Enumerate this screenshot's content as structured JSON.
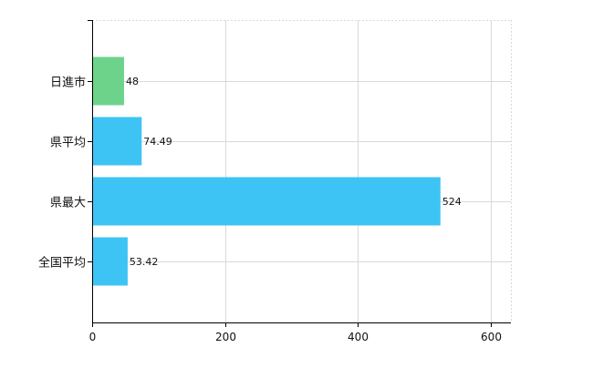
{
  "chart_data": {
    "type": "bar",
    "orientation": "horizontal",
    "categories": [
      "日進市",
      "県平均",
      "県最大",
      "全国平均"
    ],
    "values": [
      48,
      74.49,
      524,
      53.42
    ],
    "value_labels": [
      "48",
      "74.49",
      "524",
      "53.42"
    ],
    "bar_colors": [
      "#6ed38a",
      "#3ec3f5",
      "#3ec3f5",
      "#3ec3f5"
    ],
    "xlim": [
      0,
      630
    ],
    "x_ticks": [
      0,
      200,
      400,
      600
    ],
    "x_tick_labels": [
      "0",
      "200",
      "400",
      "600"
    ],
    "grid": true,
    "grid_color": "#d9d9d9",
    "axis_color": "#000000"
  }
}
